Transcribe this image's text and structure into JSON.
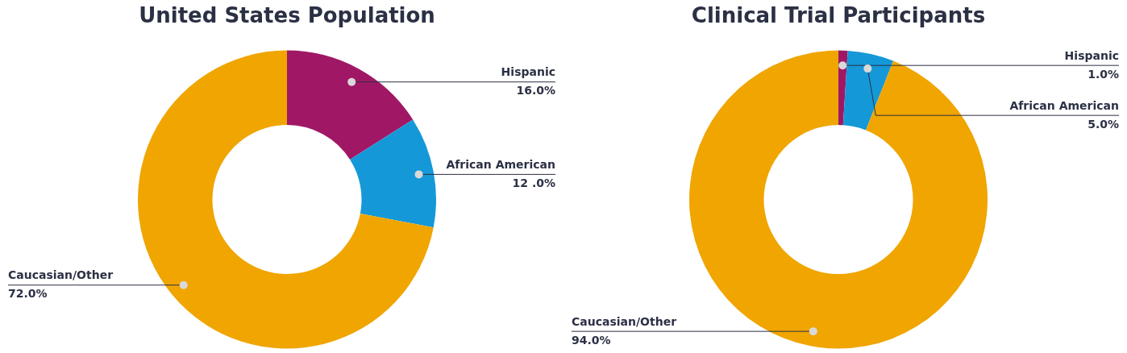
{
  "chart_data": [
    {
      "type": "donut",
      "title": "United States Population",
      "categories": [
        "Hispanic",
        "African American",
        "Caucasian/Other"
      ],
      "values": [
        16,
        12,
        72
      ],
      "colors": [
        "#a01865",
        "#1598d8",
        "#f0a500"
      ],
      "value_labels": [
        "16.0%",
        "12 .0%",
        "72.0%"
      ],
      "legend": false
    },
    {
      "type": "donut",
      "title": "Clinical Trial Participants",
      "categories": [
        "Hispanic",
        "African American",
        "Caucasian/Other"
      ],
      "values": [
        1,
        5,
        94
      ],
      "colors": [
        "#a01865",
        "#1598d8",
        "#f0a500"
      ],
      "value_labels": [
        "1.0%",
        "5.0%",
        "94.0%"
      ],
      "legend": false
    }
  ]
}
